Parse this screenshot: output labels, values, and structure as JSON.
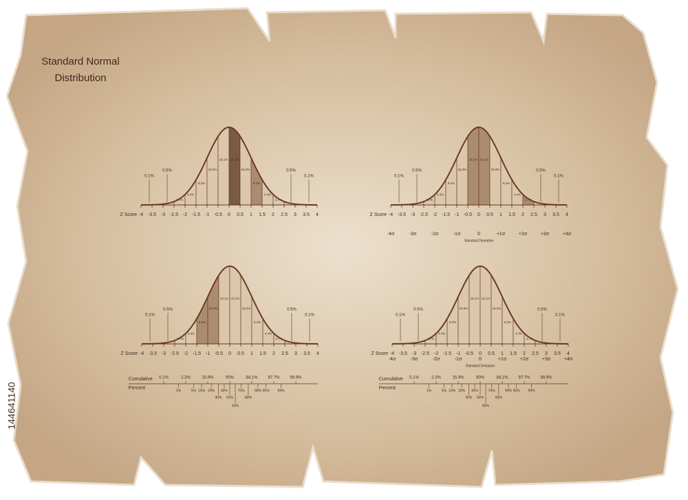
{
  "title_lines": [
    "Standard Normal",
    "Distribution"
  ],
  "z_score_label": "Z Score",
  "z_ticks": [
    "-4",
    "-3.5",
    "-3",
    "-2.5",
    "-2",
    "-1.5",
    "-1",
    "-0.5",
    "0",
    "0.5",
    "1",
    "1.5",
    "2",
    "2.5",
    "3",
    "3.5",
    "4"
  ],
  "band_percents": [
    "0.1%",
    "0.5%",
    "1.7%",
    "4.4%",
    "9.2%",
    "15.0%",
    "19.1%",
    "19.1%",
    "15.0%",
    "9.2%",
    "4.4%",
    "1.7%",
    "0.5%",
    "0.1%"
  ],
  "sigma_ticks": [
    "-4σ",
    "-3σ",
    "-2σ",
    "-1σ",
    "0",
    "+1σ",
    "+2σ",
    "+3σ",
    "+4σ"
  ],
  "sigma_label": "Standard Deviation",
  "cumulative_label": [
    "Cumulative",
    "Percent"
  ],
  "cumulative_upper": [
    "0.1%",
    "2.3%",
    "15.9%",
    "50%",
    "84.1%",
    "97.7%",
    "99.9%"
  ],
  "cumulative_lower": [
    "1%",
    "5%",
    "10%",
    "20%",
    "30%",
    "40%",
    "50%",
    "60%",
    "70%",
    "80%",
    "90%",
    "95%",
    "99%"
  ],
  "stock_id": "144641140"
}
